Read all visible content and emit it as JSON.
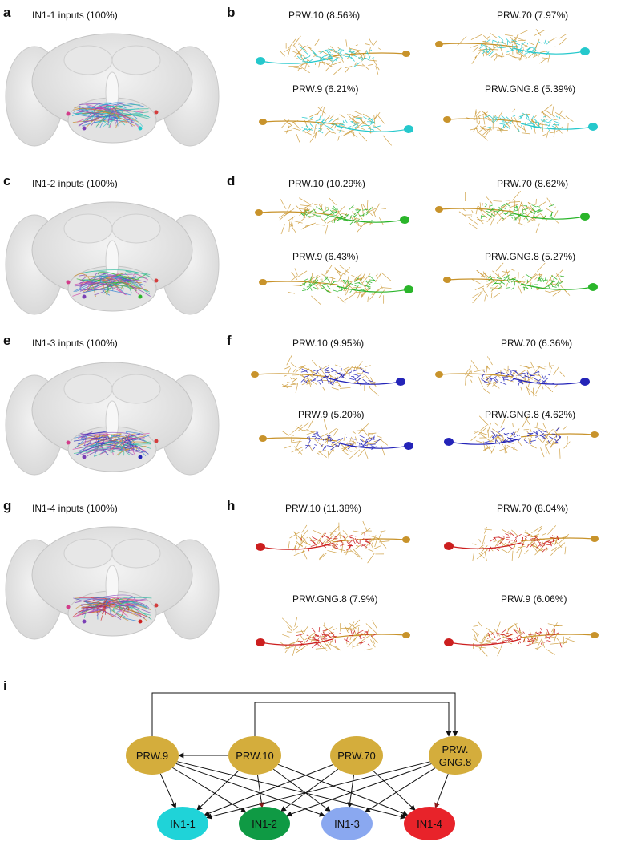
{
  "panel_letters": {
    "a": "a",
    "b": "b",
    "c": "c",
    "d": "d",
    "e": "e",
    "f": "f",
    "g": "g",
    "h": "h",
    "i": "i"
  },
  "rows": [
    {
      "brain_title": "IN1-1 inputs (100%)",
      "color": "#25c8cc",
      "labels": [
        "PRW.10 (8.56%)",
        "PRW.70 (7.97%)",
        "PRW.9 (6.21%)",
        "PRW.GNG.8 (5.39%)"
      ]
    },
    {
      "brain_title": "IN1-2 inputs (100%)",
      "color": "#2ab52a",
      "labels": [
        "PRW.10 (10.29%)",
        "PRW.70 (8.62%)",
        "PRW.9 (6.43%)",
        "PRW.GNG.8 (5.27%)"
      ]
    },
    {
      "brain_title": "IN1-3 inputs (100%)",
      "color": "#2424b8",
      "labels": [
        "PRW.10 (9.95%)",
        "PRW.70 (6.36%)",
        "PRW.9 (5.20%)",
        "PRW.GNG.8 (4.62%)"
      ]
    },
    {
      "brain_title": "IN1-4 inputs (100%)",
      "color": "#cc1f1f",
      "labels": [
        "PRW.10 (11.38%)",
        "PRW.70 (8.04%)",
        "PRW.GNG.8 (7.9%)",
        "PRW.9 (6.06%)"
      ]
    }
  ],
  "diagram": {
    "source_nodes": [
      {
        "id": "prw9",
        "line1": "PRW.9",
        "line2": ""
      },
      {
        "id": "prw10",
        "line1": "PRW.10",
        "line2": ""
      },
      {
        "id": "prw70",
        "line1": "PRW.70",
        "line2": ""
      },
      {
        "id": "prwgng8",
        "line1": "PRW.",
        "line2": "GNG.8"
      }
    ],
    "target_nodes": [
      {
        "id": "in11",
        "label": "IN1-1",
        "color": "#1fd3d8"
      },
      {
        "id": "in12",
        "label": "IN1-2",
        "color": "#0f9a44"
      },
      {
        "id": "in13",
        "label": "IN1-3",
        "color": "#8aa8f0"
      },
      {
        "id": "in14",
        "label": "IN1-4",
        "color": "#e8232a"
      }
    ],
    "source_color": "#d4ad3c",
    "edges": [
      [
        "prw9",
        "in11"
      ],
      [
        "prw9",
        "in12"
      ],
      [
        "prw9",
        "in13"
      ],
      [
        "prw9",
        "in14"
      ],
      [
        "prw10",
        "in11"
      ],
      [
        "prw10",
        "in12"
      ],
      [
        "prw10",
        "in13"
      ],
      [
        "prw10",
        "in14"
      ],
      [
        "prw70",
        "in11"
      ],
      [
        "prw70",
        "in12"
      ],
      [
        "prw70",
        "in13"
      ],
      [
        "prw70",
        "in14"
      ],
      [
        "prwgng8",
        "in11"
      ],
      [
        "prwgng8",
        "in12"
      ],
      [
        "prwgng8",
        "in13"
      ],
      [
        "prwgng8",
        "in14"
      ],
      [
        "prw10",
        "prw9"
      ],
      [
        "prw9",
        "prwgng8"
      ],
      [
        "prw10",
        "prwgng8"
      ]
    ]
  }
}
